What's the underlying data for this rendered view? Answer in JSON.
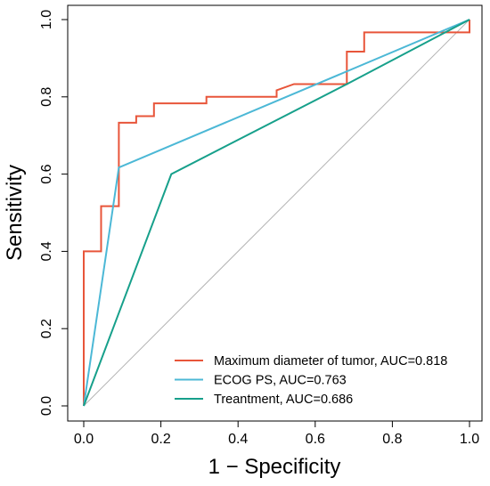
{
  "chart_data": {
    "type": "line",
    "xlabel": "1 − Specificity",
    "ylabel": "Sensitivity",
    "xlim": [
      0,
      1
    ],
    "ylim": [
      0,
      1
    ],
    "x_ticks": [
      "0.0",
      "0.2",
      "0.4",
      "0.6",
      "0.8",
      "1.0"
    ],
    "y_ticks": [
      "0.0",
      "0.2",
      "0.4",
      "0.6",
      "0.8",
      "1.0"
    ],
    "grid": false,
    "legend_position": "bottom-right",
    "reference_line": {
      "from": [
        0,
        0
      ],
      "to": [
        1,
        1
      ],
      "color": "#b3b3b3"
    },
    "series": [
      {
        "name": "Maximum diameter of tumor, AUC=0.818",
        "color": "#e8553a",
        "points": [
          [
            0,
            0
          ],
          [
            0,
            0.4
          ],
          [
            0.045,
            0.4
          ],
          [
            0.045,
            0.517
          ],
          [
            0.091,
            0.517
          ],
          [
            0.091,
            0.733
          ],
          [
            0.136,
            0.733
          ],
          [
            0.136,
            0.75
          ],
          [
            0.182,
            0.75
          ],
          [
            0.182,
            0.783
          ],
          [
            0.318,
            0.783
          ],
          [
            0.318,
            0.8
          ],
          [
            0.5,
            0.8
          ],
          [
            0.5,
            0.817
          ],
          [
            0.545,
            0.833
          ],
          [
            0.682,
            0.833
          ],
          [
            0.682,
            0.917
          ],
          [
            0.727,
            0.917
          ],
          [
            0.727,
            0.967
          ],
          [
            1,
            0.967
          ],
          [
            1,
            1
          ]
        ]
      },
      {
        "name": "ECOG PS, AUC=0.763",
        "color": "#4cb8d6",
        "points": [
          [
            0,
            0
          ],
          [
            0.091,
            0.617
          ],
          [
            1,
            1
          ]
        ]
      },
      {
        "name": "Treantment, AUC=0.686",
        "color": "#17a08b",
        "points": [
          [
            0,
            0
          ],
          [
            0.227,
            0.6
          ],
          [
            0.682,
            0.833
          ],
          [
            1,
            1
          ]
        ]
      }
    ]
  }
}
